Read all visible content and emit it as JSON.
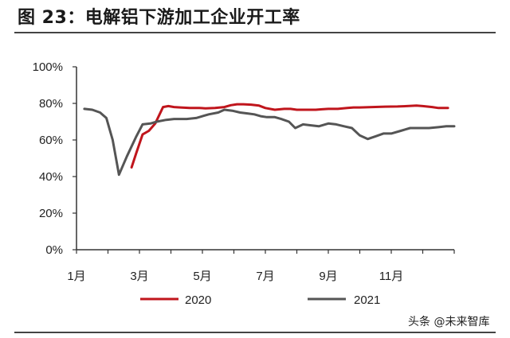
{
  "header": {
    "title": "图 23：电解铝下游加工企业开工率"
  },
  "watermark": "头条 @未来智库",
  "colors": {
    "s2020": "#c0151c",
    "s2021": "#555555"
  },
  "chart_data": {
    "type": "line",
    "title": "图 23：电解铝下游加工企业开工率",
    "x_tick_labels": [
      "1月",
      "3月",
      "5月",
      "7月",
      "9月",
      "11月"
    ],
    "y_tick_labels": [
      "0%",
      "20%",
      "40%",
      "60%",
      "80%",
      "100%"
    ],
    "ylim": [
      0,
      100
    ],
    "xlim": [
      1,
      13
    ],
    "grid": false,
    "legend_position": "bottom",
    "series": [
      {
        "name": "2020",
        "x": [
          2.75,
          2.9,
          3.1,
          3.3,
          3.5,
          3.75,
          3.92,
          4.1,
          4.3,
          4.6,
          4.9,
          5.1,
          5.4,
          5.7,
          5.9,
          6.1,
          6.3,
          6.55,
          6.8,
          7.0,
          7.3,
          7.6,
          7.8,
          8.0,
          8.3,
          8.6,
          8.8,
          9.0,
          9.3,
          9.6,
          9.8,
          10.0,
          10.4,
          10.8,
          11.2,
          11.5,
          11.8,
          12.0,
          12.3,
          12.5,
          12.8
        ],
        "values": [
          45,
          53,
          63,
          65,
          69,
          78,
          78.5,
          78,
          77.8,
          77.5,
          77.5,
          77.3,
          77.5,
          78,
          79,
          79.5,
          79.5,
          79.3,
          78.8,
          77.5,
          76.5,
          77,
          77,
          76.5,
          76.5,
          76.5,
          76.8,
          77,
          77,
          77.5,
          77.8,
          77.8,
          78,
          78.2,
          78.3,
          78.5,
          78.8,
          78.5,
          78,
          77.5,
          77.5
        ]
      },
      {
        "name": "2021",
        "x": [
          1.25,
          1.5,
          1.75,
          1.95,
          2.15,
          2.35,
          2.6,
          2.9,
          3.1,
          3.35,
          3.55,
          3.85,
          4.1,
          4.5,
          4.8,
          5.2,
          5.5,
          5.7,
          5.95,
          6.2,
          6.45,
          6.65,
          6.85,
          7.05,
          7.3,
          7.5,
          7.75,
          7.95,
          8.2,
          8.45,
          8.7,
          9.0,
          9.25,
          9.5,
          9.75,
          10.0,
          10.25,
          10.5,
          10.75,
          11.0,
          11.3,
          11.6,
          11.9,
          12.2,
          12.5,
          12.75,
          13.0
        ],
        "values": [
          77,
          76.5,
          75,
          72,
          60,
          41,
          51,
          62,
          68.5,
          69,
          70,
          71,
          71.5,
          71.5,
          72,
          74,
          75,
          76.5,
          76,
          75,
          74.5,
          74,
          73,
          72.5,
          72.5,
          71.5,
          70,
          66.5,
          68.5,
          68,
          67.5,
          69,
          68.5,
          67.5,
          66.5,
          62.5,
          60.5,
          62,
          63.5,
          63.5,
          65,
          66.5,
          66.5,
          66.5,
          67,
          67.5,
          67.5
        ]
      }
    ]
  }
}
